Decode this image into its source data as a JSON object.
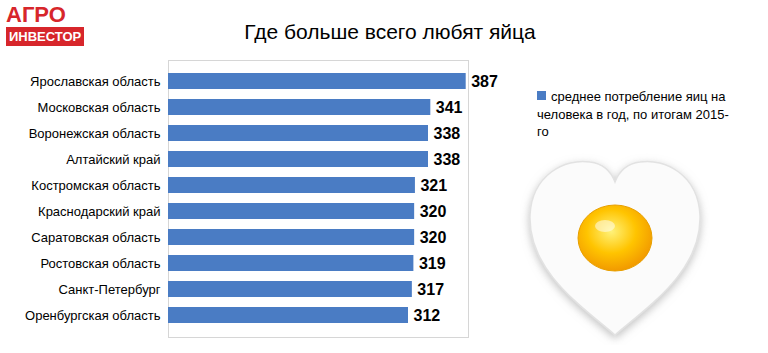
{
  "chart_data": {
    "type": "bar",
    "orientation": "horizontal",
    "title": "Где больше всего любят яйца",
    "annotations": [
      "АГРО",
      "ИНВЕСТОР"
    ],
    "categories": [
      "Ярославская область",
      "Московская область",
      "Воронежская область",
      "Алтайский край",
      "Костромская область",
      "Краснодарский край",
      "Саратовская область",
      "Ростовская область",
      "Санкт-Петербург",
      "Оренбургская область"
    ],
    "series": [
      {
        "name": "среднее потребление яиц на человека в год, по итогам 2015-го",
        "color": "#4a7cc4",
        "values": [
          387,
          341,
          338,
          338,
          321,
          320,
          320,
          319,
          317,
          312
        ]
      }
    ],
    "xlim": [
      0,
      390
    ],
    "data_labels": true,
    "tick_labels": "y",
    "grid": false,
    "legend": "right"
  }
}
